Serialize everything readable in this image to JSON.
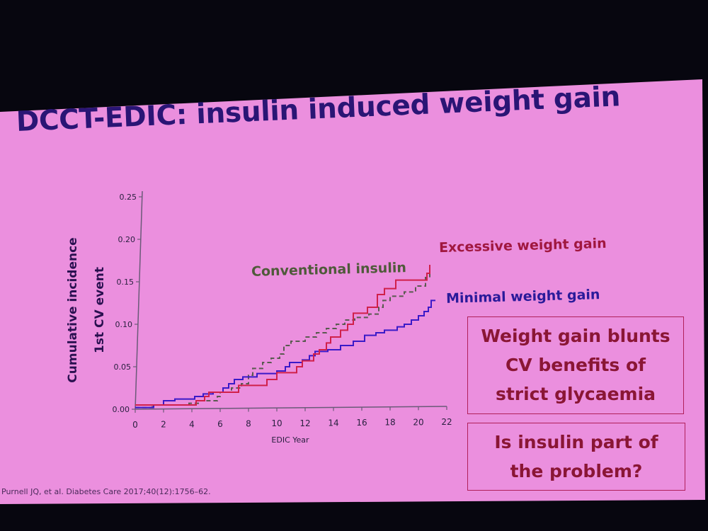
{
  "title": "DCCT-EDIC: insulin induced weight gain",
  "callouts": [
    "Weight gain blunts CV benefits of strict glycaemia",
    "Is insulin part of the problem?"
  ],
  "callout_lines": [
    [
      "Weight gain blunts",
      "CV benefits of",
      "strict glycaemia"
    ],
    [
      "Is insulin part of",
      "the problem?"
    ]
  ],
  "reference": "Purnell JQ, et al. Diabetes Care 2017;40(12):1756–62.",
  "colors": {
    "excessive": "#d0204a",
    "minimal": "#3a1ac8",
    "conventional": "#5a5a50",
    "slide": "#eb8fde",
    "title": "#2a1575"
  },
  "chart_data": {
    "type": "line",
    "title": "",
    "xlabel": "EDIC Year",
    "ylabel": "Cumulative incidence 1st CV event",
    "ylabel_lines": [
      "Cumulative incidence",
      "1st CV event"
    ],
    "xlim": [
      0,
      22
    ],
    "ylim": [
      0,
      0.25
    ],
    "xticks": [
      "0",
      "2",
      "4",
      "6",
      "8",
      "10",
      "12",
      "14",
      "16",
      "18",
      "20",
      "22"
    ],
    "yticks": [
      "0.00",
      "0.05",
      "0.10",
      "0.15",
      "0.20",
      "0.25"
    ],
    "grid": false,
    "series": [
      {
        "name": "Excessive weight gain",
        "style": "step",
        "color": "#d0204a",
        "x": [
          0,
          4.3,
          4.9,
          5.2,
          7.3,
          9.3,
          10,
          11.4,
          11.8,
          12.6,
          13,
          13.5,
          13.8,
          14.5,
          15,
          15.4,
          16.4,
          17.1,
          17.6,
          18.4,
          20.6,
          20.8
        ],
        "y": [
          0.005,
          0.01,
          0.015,
          0.02,
          0.028,
          0.035,
          0.043,
          0.05,
          0.057,
          0.065,
          0.07,
          0.078,
          0.085,
          0.093,
          0.1,
          0.113,
          0.12,
          0.135,
          0.142,
          0.152,
          0.16,
          0.17
        ]
      },
      {
        "name": "Minimal weight gain",
        "style": "step",
        "color": "#3a1ac8",
        "x": [
          0,
          1.3,
          2,
          2.8,
          4.2,
          4.8,
          5.5,
          6.2,
          6.6,
          7,
          7.6,
          8.6,
          10,
          10.6,
          10.9,
          11.8,
          12.3,
          12.7,
          13.6,
          14.5,
          15.4,
          16.2,
          17,
          17.6,
          18.5,
          19,
          19.5,
          20,
          20.4,
          20.7,
          20.9,
          21.2
        ],
        "y": [
          0.002,
          0.005,
          0.01,
          0.012,
          0.015,
          0.018,
          0.02,
          0.025,
          0.03,
          0.035,
          0.038,
          0.042,
          0.045,
          0.05,
          0.055,
          0.058,
          0.063,
          0.068,
          0.07,
          0.075,
          0.08,
          0.087,
          0.09,
          0.093,
          0.097,
          0.1,
          0.105,
          0.11,
          0.115,
          0.12,
          0.128,
          0.128
        ]
      },
      {
        "name": "Conventional insulin",
        "style": "step-dashed",
        "color": "#5a5a50",
        "x": [
          0,
          1.2,
          3.8,
          4.5,
          5.8,
          6,
          6.8,
          7.5,
          8,
          8.3,
          9,
          9.6,
          10.2,
          10.5,
          11,
          12,
          12.8,
          13.5,
          14.2,
          14.8,
          15.5,
          16.5,
          17.2,
          17.5,
          18,
          19,
          19.8,
          20.5,
          20.8
        ],
        "y": [
          0.002,
          0.005,
          0.007,
          0.01,
          0.015,
          0.02,
          0.025,
          0.03,
          0.04,
          0.048,
          0.055,
          0.06,
          0.065,
          0.075,
          0.08,
          0.085,
          0.09,
          0.095,
          0.1,
          0.105,
          0.108,
          0.112,
          0.12,
          0.128,
          0.133,
          0.138,
          0.145,
          0.155,
          0.165
        ]
      }
    ]
  }
}
